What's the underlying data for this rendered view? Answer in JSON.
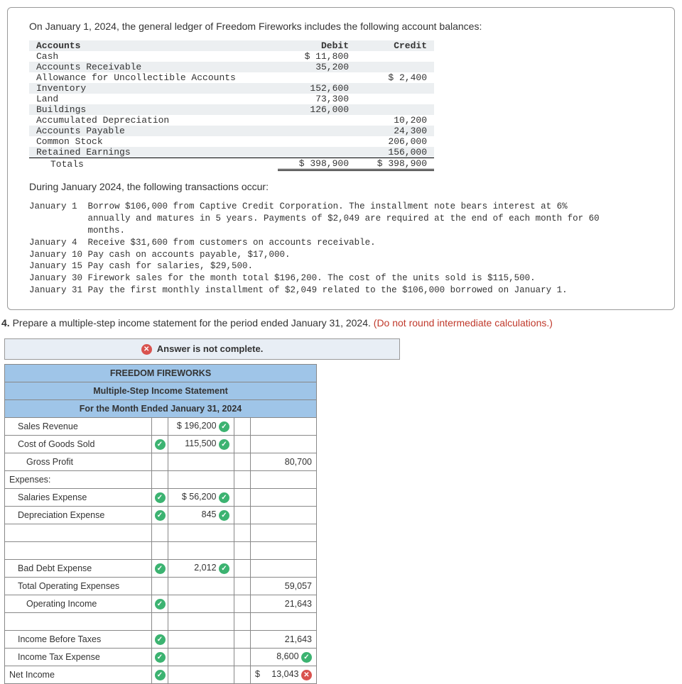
{
  "problem": {
    "intro": "On January 1, 2024, the general ledger of Freedom Fireworks includes the following account balances:",
    "ledger": {
      "headers": {
        "accounts": "Accounts",
        "debit": "Debit",
        "credit": "Credit"
      },
      "rows": [
        {
          "acct": "Cash",
          "debit": "$ 11,800",
          "credit": "",
          "alt": false
        },
        {
          "acct": "Accounts Receivable",
          "debit": "35,200",
          "credit": "",
          "alt": true
        },
        {
          "acct": "Allowance for Uncollectible Accounts",
          "debit": "",
          "credit": "$ 2,400",
          "alt": false
        },
        {
          "acct": "Inventory",
          "debit": "152,600",
          "credit": "",
          "alt": true
        },
        {
          "acct": "Land",
          "debit": "73,300",
          "credit": "",
          "alt": false
        },
        {
          "acct": "Buildings",
          "debit": "126,000",
          "credit": "",
          "alt": true
        },
        {
          "acct": "Accumulated Depreciation",
          "debit": "",
          "credit": "10,200",
          "alt": false
        },
        {
          "acct": "Accounts Payable",
          "debit": "",
          "credit": "24,300",
          "alt": true
        },
        {
          "acct": "Common Stock",
          "debit": "",
          "credit": "206,000",
          "alt": false
        },
        {
          "acct": "Retained Earnings",
          "debit": "",
          "credit": "156,000",
          "alt": true
        }
      ],
      "totals": {
        "label": "Totals",
        "debit": "$ 398,900",
        "credit": "$ 398,900"
      }
    },
    "trans_intro": "During January 2024, the following transactions occur:",
    "transactions": "January 1  Borrow $106,000 from Captive Credit Corporation. The installment note bears interest at 6%\n           annually and matures in 5 years. Payments of $2,049 are required at the end of each month for 60\n           months.\nJanuary 4  Receive $31,600 from customers on accounts receivable.\nJanuary 10 Pay cash on accounts payable, $17,000.\nJanuary 15 Pay cash for salaries, $29,500.\nJanuary 30 Firework sales for the month total $196,200. The cost of the units sold is $115,500.\nJanuary 31 Pay the first monthly installment of $2,049 related to the $106,000 borrowed on January 1."
  },
  "question": {
    "num": "4.",
    "text_a": "Prepare a multiple-step income statement for the period ended January 31, 2024. ",
    "text_red": "(Do not round intermediate calculations.)"
  },
  "banner": "Answer is not complete.",
  "stmt": {
    "title1": "FREEDOM FIREWORKS",
    "title2": "Multiple-Step Income Statement",
    "title3": "For the Month Ended January 31, 2024",
    "rows": {
      "sales_rev": {
        "label": "Sales Revenue",
        "amt1": "$ 196,200"
      },
      "cogs": {
        "label": "Cost of Goods Sold",
        "amt1": "115,500"
      },
      "gross": {
        "label": "Gross Profit",
        "amt2": "80,700"
      },
      "expenses": {
        "label": "Expenses:"
      },
      "sal_exp": {
        "label": "Salaries Expense",
        "amt1": "$  56,200"
      },
      "dep_exp": {
        "label": "Depreciation Expense",
        "amt1": "845"
      },
      "bad_debt": {
        "label": "Bad Debt Expense",
        "amt1": "2,012"
      },
      "tot_op": {
        "label": "Total Operating Expenses",
        "amt2": "59,057"
      },
      "op_inc": {
        "label": "Operating Income",
        "amt2": "21,643"
      },
      "ibt": {
        "label": "Income Before Taxes",
        "amt2": "21,643"
      },
      "tax": {
        "label": "Income Tax Expense",
        "amt2": "8,600"
      },
      "net": {
        "label": "Net Income",
        "amt2_prefix": "$",
        "amt2": "13,043"
      }
    }
  },
  "colors": {
    "banner_bg": "#e8eef5",
    "header_bg": "#9fc5e8",
    "check": "#3cb371",
    "x": "#d9534f",
    "red_text": "#c0392b"
  }
}
